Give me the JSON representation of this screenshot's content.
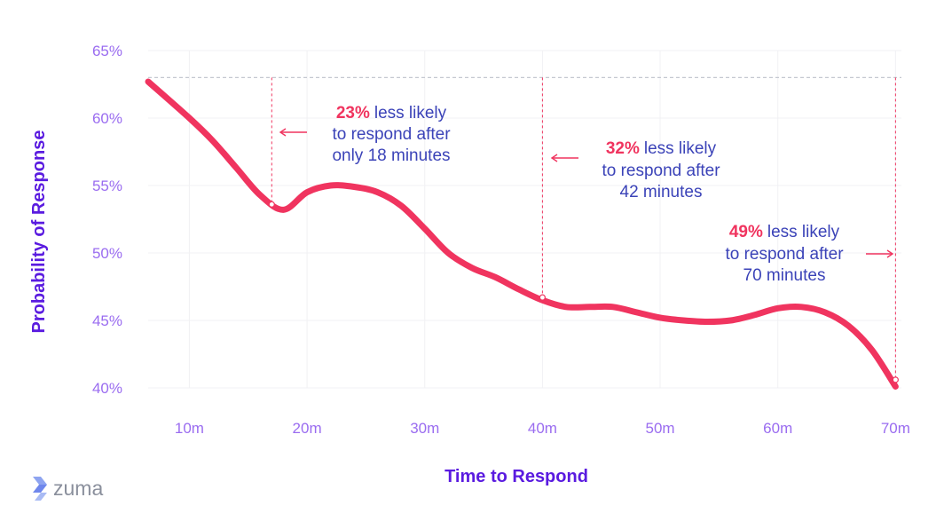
{
  "chart_data": {
    "type": "line",
    "title": "",
    "xlabel": "Time to Respond",
    "ylabel": "Probability of Response",
    "ylim": [
      40,
      65
    ],
    "xlim": [
      6.5,
      70.5
    ],
    "grid": true,
    "y_ticks": [
      {
        "value": 65,
        "label": "65%"
      },
      {
        "value": 60,
        "label": "60%"
      },
      {
        "value": 55,
        "label": "55%"
      },
      {
        "value": 50,
        "label": "50%"
      },
      {
        "value": 45,
        "label": "45%"
      },
      {
        "value": 40,
        "label": "40%"
      }
    ],
    "x_ticks": [
      {
        "value": 10,
        "label": "10m"
      },
      {
        "value": 20,
        "label": "20m"
      },
      {
        "value": 30,
        "label": "30m"
      },
      {
        "value": 40,
        "label": "40m"
      },
      {
        "value": 50,
        "label": "50m"
      },
      {
        "value": 60,
        "label": "60m"
      },
      {
        "value": 70,
        "label": "70m"
      }
    ],
    "series": [
      {
        "name": "Probability of Response",
        "color": "#f0345f",
        "x": [
          6.5,
          10,
          12,
          14,
          16,
          18,
          20,
          22,
          24,
          26,
          28,
          30,
          32,
          34,
          36,
          38,
          40,
          42,
          44,
          46,
          48,
          50,
          52,
          54,
          56,
          58,
          60,
          62,
          64,
          66,
          68,
          70
        ],
        "y": [
          62.7,
          60,
          58.3,
          56.3,
          54.3,
          53.2,
          54.5,
          55,
          54.9,
          54.5,
          53.5,
          51.8,
          50,
          48.9,
          48.2,
          47.3,
          46.5,
          46,
          46,
          46,
          45.6,
          45.2,
          45,
          44.9,
          45,
          45.4,
          45.9,
          46,
          45.6,
          44.6,
          42.8,
          40.1
        ]
      }
    ],
    "reference_line": {
      "value": 63,
      "color": "#c5c8d0"
    },
    "annotations": [
      {
        "pct": "23%",
        "line1": "less likely",
        "line2": "to respond after",
        "line3": "only 18 minutes",
        "x": 17,
        "y": 53.6
      },
      {
        "pct": "32%",
        "line1": "less likely",
        "line2": "to respond after",
        "line3": "42 minutes",
        "x": 40,
        "y": 46.7
      },
      {
        "pct": "49%",
        "line1": "less likely",
        "line2": "to respond after",
        "line3": "70 minutes",
        "x": 70,
        "y": 40.6
      }
    ],
    "colors": {
      "line": "#f0345f",
      "accent": "#f0345f",
      "tick": "#9a6cf0",
      "axis_label": "#5a1be0",
      "annotation": "#3b43b8"
    }
  },
  "logo": {
    "text": "zuma",
    "icon": "zuma-logo-icon"
  }
}
